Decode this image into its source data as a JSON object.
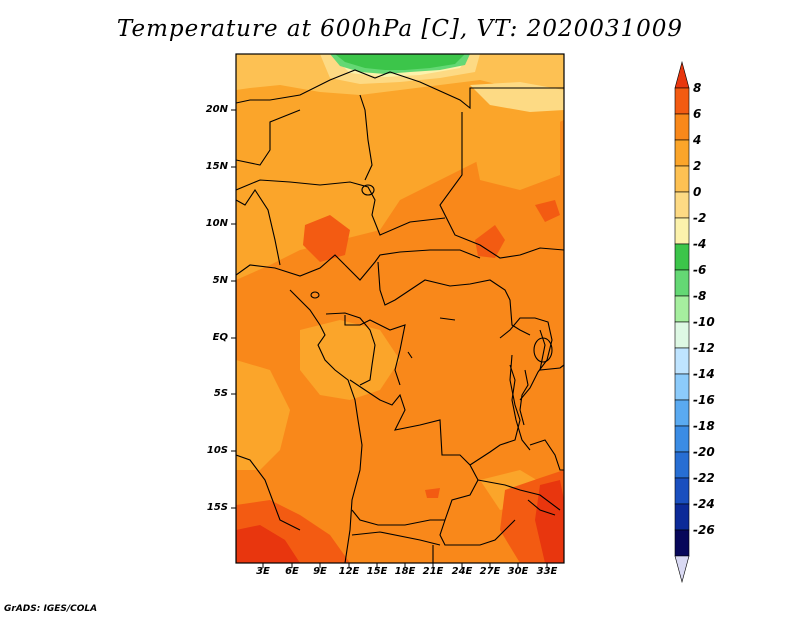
{
  "title": "Temperature at 600hPa [C], VT: 2020031009",
  "footer": "GrADS: IGES/COLA",
  "lat_labels": [
    "20N",
    "15N",
    "10N",
    "5N",
    "EQ",
    "5S",
    "10S",
    "15S"
  ],
  "lon_labels": [
    "3E",
    "6E",
    "9E",
    "12E",
    "15E",
    "18E",
    "21E",
    "24E",
    "27E",
    "30E",
    "33E"
  ],
  "colorbar": {
    "labels": [
      "8",
      "6",
      "4",
      "2",
      "0",
      "-2",
      "-4",
      "-6",
      "-8",
      "-10",
      "-12",
      "-14",
      "-16",
      "-18",
      "-20",
      "-22",
      "-24",
      "-26"
    ],
    "colors": [
      "#e8360e",
      "#f35b12",
      "#f9881a",
      "#fba52a",
      "#fdc153",
      "#fdda84",
      "#fcf2ac",
      "#3cc54a",
      "#64d874",
      "#a6ef9f",
      "#def8e4",
      "#bfe4ff",
      "#8ccbfb",
      "#5aaaf1",
      "#3b8ce4",
      "#276ed3",
      "#1a4fbf",
      "#0c2a98",
      "#07075a",
      "#d9d9f3"
    ]
  }
}
